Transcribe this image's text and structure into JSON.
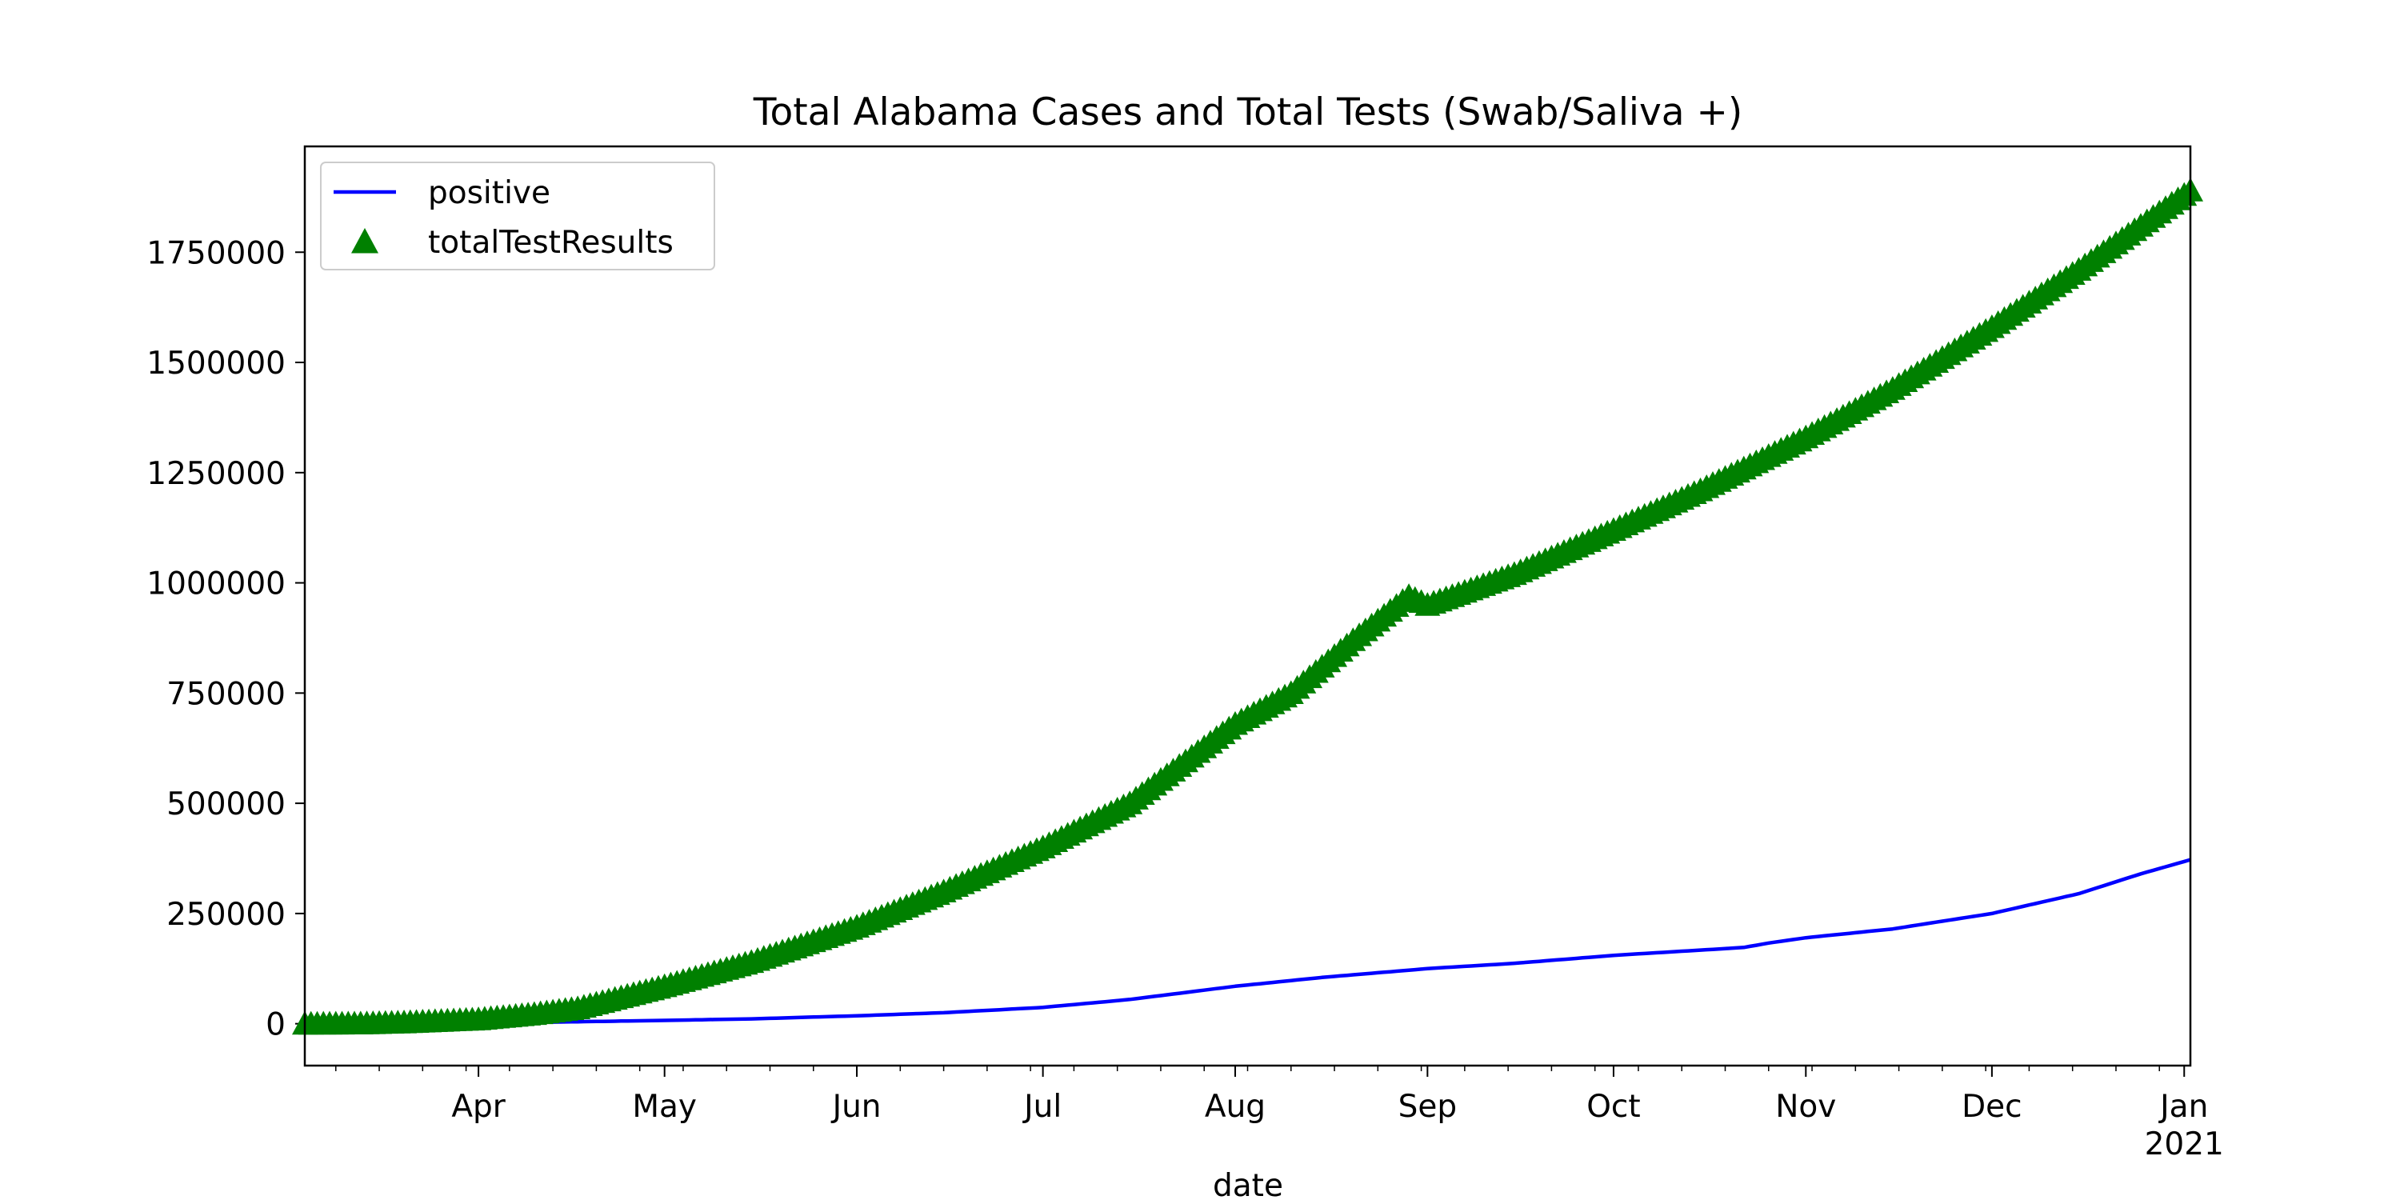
{
  "chart_data": {
    "type": "line",
    "title": "Total Alabama Cases and Total Tests (Swab/Saliva +)",
    "xlabel": "date",
    "ylabel": "",
    "x_range": [
      "2020-03-04",
      "2021-01-02"
    ],
    "ylim": [
      -95000,
      1990000
    ],
    "y_ticks": [
      0,
      250000,
      500000,
      750000,
      1000000,
      1250000,
      1500000,
      1750000
    ],
    "y_tick_labels": [
      "0",
      "250000",
      "500000",
      "750000",
      "1000000",
      "1250000",
      "1500000",
      "1750000"
    ],
    "x_ticks": [
      {
        "date": "2020-04-01",
        "label": "Apr"
      },
      {
        "date": "2020-05-01",
        "label": "May"
      },
      {
        "date": "2020-06-01",
        "label": "Jun"
      },
      {
        "date": "2020-07-01",
        "label": "Jul"
      },
      {
        "date": "2020-08-01",
        "label": "Aug"
      },
      {
        "date": "2020-09-01",
        "label": "Sep"
      },
      {
        "date": "2020-10-01",
        "label": "Oct"
      },
      {
        "date": "2020-11-01",
        "label": "Nov"
      },
      {
        "date": "2020-12-01",
        "label": "Dec"
      },
      {
        "date": "2021-01-01",
        "label": "Jan",
        "sublabel": "2021"
      }
    ],
    "legend_position": "upper-left",
    "grid": false,
    "series": [
      {
        "name": "positive",
        "style": "line",
        "color": "#0000ff",
        "points": [
          [
            "2020-03-04",
            0
          ],
          [
            "2020-03-13",
            5
          ],
          [
            "2020-03-20",
            80
          ],
          [
            "2020-03-27",
            600
          ],
          [
            "2020-04-03",
            1300
          ],
          [
            "2020-04-10",
            3000
          ],
          [
            "2020-04-17",
            4500
          ],
          [
            "2020-05-01",
            7500
          ],
          [
            "2020-05-15",
            11000
          ],
          [
            "2020-06-01",
            18000
          ],
          [
            "2020-06-15",
            25000
          ],
          [
            "2020-07-01",
            37000
          ],
          [
            "2020-07-15",
            55000
          ],
          [
            "2020-08-01",
            85000
          ],
          [
            "2020-08-15",
            105000
          ],
          [
            "2020-09-01",
            125000
          ],
          [
            "2020-09-15",
            137000
          ],
          [
            "2020-10-01",
            155000
          ],
          [
            "2020-10-15",
            167000
          ],
          [
            "2020-10-22",
            173000
          ],
          [
            "2020-10-26",
            183000
          ],
          [
            "2020-11-01",
            195000
          ],
          [
            "2020-11-15",
            215000
          ],
          [
            "2020-12-01",
            250000
          ],
          [
            "2020-12-15",
            295000
          ],
          [
            "2020-12-25",
            340000
          ],
          [
            "2021-01-02",
            372000
          ]
        ]
      },
      {
        "name": "totalTestResults",
        "style": "triangle-markers",
        "color": "#008000",
        "points": [
          [
            "2020-03-04",
            0
          ],
          [
            "2020-03-13",
            500
          ],
          [
            "2020-03-20",
            3000
          ],
          [
            "2020-03-27",
            7000
          ],
          [
            "2020-04-01",
            10000
          ],
          [
            "2020-04-10",
            22000
          ],
          [
            "2020-04-17",
            35000
          ],
          [
            "2020-05-01",
            85000
          ],
          [
            "2020-05-15",
            140000
          ],
          [
            "2020-06-01",
            220000
          ],
          [
            "2020-06-15",
            300000
          ],
          [
            "2020-07-01",
            400000
          ],
          [
            "2020-07-15",
            500000
          ],
          [
            "2020-08-01",
            680000
          ],
          [
            "2020-08-10",
            750000
          ],
          [
            "2020-08-20",
            870000
          ],
          [
            "2020-08-29",
            970000
          ],
          [
            "2020-09-01",
            950000
          ],
          [
            "2020-09-15",
            1020000
          ],
          [
            "2020-10-01",
            1120000
          ],
          [
            "2020-10-15",
            1210000
          ],
          [
            "2020-11-01",
            1330000
          ],
          [
            "2020-11-15",
            1440000
          ],
          [
            "2020-12-01",
            1580000
          ],
          [
            "2020-12-15",
            1710000
          ],
          [
            "2021-01-02",
            1890000
          ]
        ]
      }
    ]
  }
}
